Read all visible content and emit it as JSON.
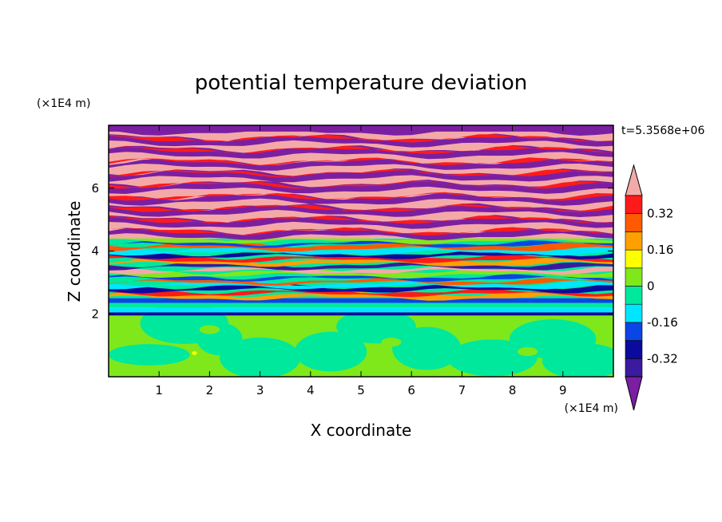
{
  "chart_data": {
    "type": "heatmap",
    "title": "potential temperature deviation",
    "time_label": "t=5.3568e+06",
    "xlabel": "X coordinate",
    "ylabel": "Z coordinate",
    "x_unit": "(×1E4 m)",
    "y_unit": "(×1E4 m)",
    "xlim": [
      0,
      10
    ],
    "ylim": [
      0,
      8
    ],
    "x_ticks": [
      1,
      2,
      3,
      4,
      5,
      6,
      7,
      8,
      9
    ],
    "y_ticks": [
      2,
      4,
      6
    ],
    "colorbar": {
      "levels": [
        -0.48,
        -0.4,
        -0.32,
        -0.24,
        -0.16,
        -0.08,
        0,
        0.08,
        0.16,
        0.24,
        0.32,
        0.4,
        0.48
      ],
      "colors": [
        "#7b1fa2",
        "#3a1a9e",
        "#0a0a9c",
        "#0a46e6",
        "#00e6ff",
        "#00e89c",
        "#7fe81a",
        "#ffff00",
        "#ffa000",
        "#ff5a00",
        "#ff1a1a",
        "#f4a9a9"
      ],
      "tick_labels": [
        "0.32",
        "0.16",
        "0",
        "-0.16",
        "-0.32"
      ],
      "tick_values": [
        0.32,
        0.16,
        0,
        -0.16,
        -0.32
      ],
      "extend": "both"
    }
  }
}
